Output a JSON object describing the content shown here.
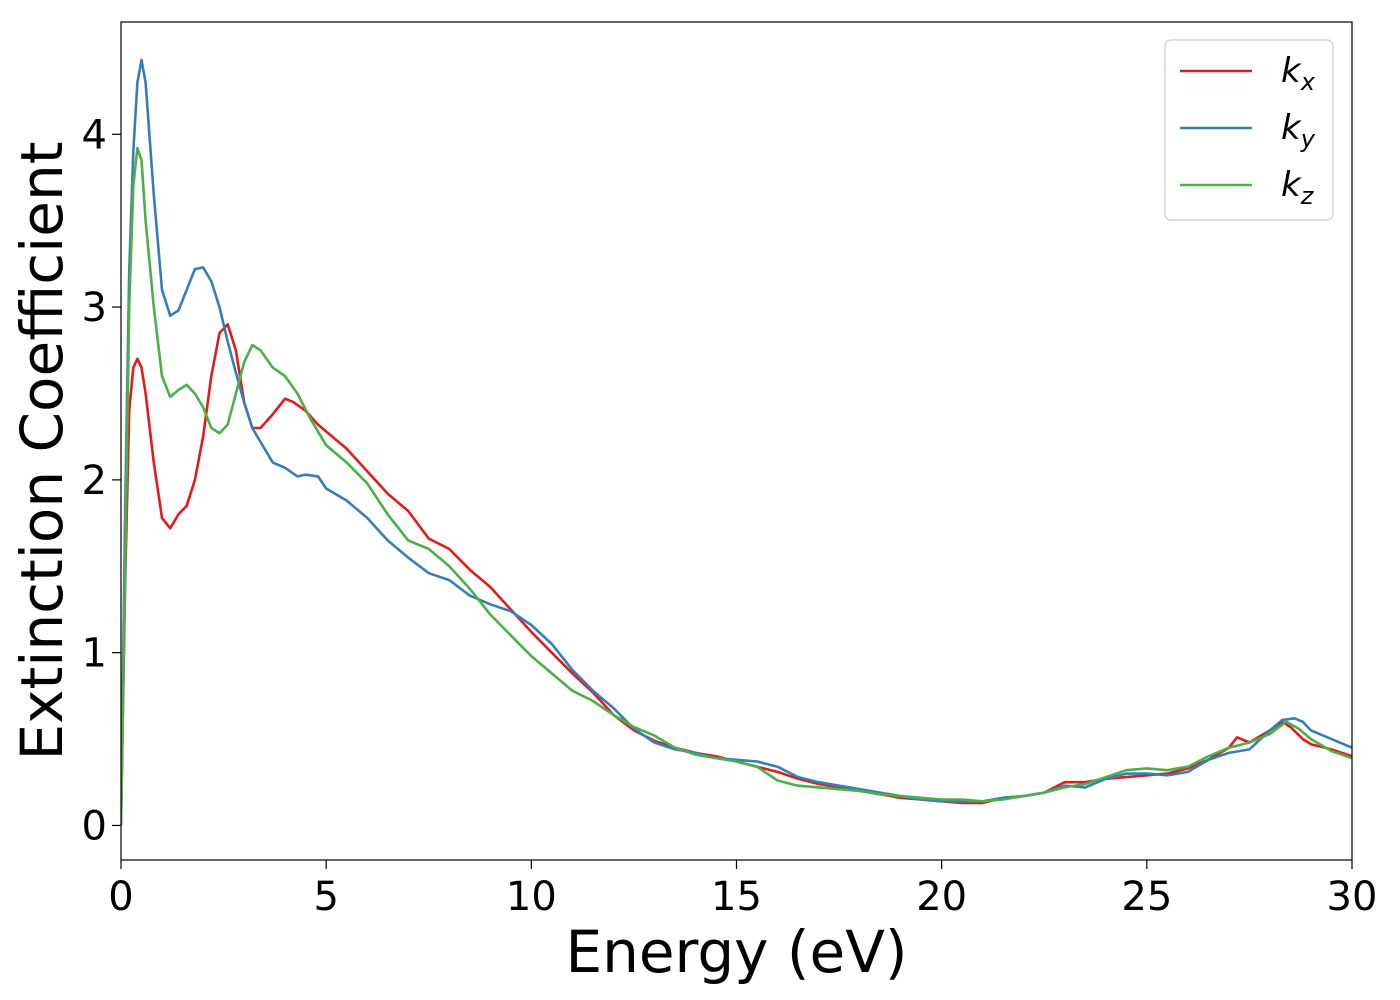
{
  "chart_data": {
    "type": "line",
    "xlabel": "Energy (eV)",
    "ylabel": "Extinction Coefficient",
    "xlim": [
      0,
      30
    ],
    "ylim": [
      -0.2,
      4.65
    ],
    "xticks": [
      0,
      5,
      10,
      15,
      20,
      25,
      30
    ],
    "xtick_labels": [
      "0",
      "5",
      "10",
      "15",
      "20",
      "25",
      "30"
    ],
    "yticks": [
      0,
      1,
      2,
      3,
      4
    ],
    "ytick_labels": [
      "0",
      "1",
      "2",
      "3",
      "4"
    ],
    "grid": false,
    "legend_position": "top-right",
    "series": [
      {
        "name": "k",
        "subscript": "x",
        "color": "#e41a1c",
        "x": [
          0,
          0.1,
          0.2,
          0.3,
          0.4,
          0.5,
          0.6,
          0.8,
          1.0,
          1.2,
          1.4,
          1.6,
          1.8,
          2.0,
          2.2,
          2.4,
          2.6,
          2.8,
          3.0,
          3.2,
          3.4,
          3.7,
          4.0,
          4.2,
          4.5,
          4.8,
          5.0,
          5.5,
          6.0,
          6.5,
          7.0,
          7.5,
          8.0,
          8.5,
          9.0,
          9.5,
          10.0,
          10.5,
          11.0,
          11.5,
          12.0,
          12.5,
          13.0,
          13.5,
          14.0,
          14.5,
          15.0,
          15.5,
          16.0,
          16.5,
          17.0,
          17.5,
          18.0,
          18.5,
          19.0,
          19.5,
          20.0,
          20.5,
          21.0,
          21.5,
          22.0,
          22.5,
          23.0,
          23.5,
          24.0,
          24.5,
          25.0,
          25.5,
          26.0,
          26.5,
          27.0,
          27.2,
          27.5,
          28.0,
          28.3,
          28.5,
          28.8,
          29.0,
          29.5,
          30.0
        ],
        "y": [
          0,
          1.4,
          2.4,
          2.65,
          2.7,
          2.65,
          2.5,
          2.1,
          1.78,
          1.72,
          1.8,
          1.85,
          2.0,
          2.25,
          2.6,
          2.85,
          2.9,
          2.75,
          2.45,
          2.3,
          2.3,
          2.38,
          2.47,
          2.45,
          2.4,
          2.32,
          2.28,
          2.18,
          2.05,
          1.92,
          1.82,
          1.66,
          1.6,
          1.48,
          1.38,
          1.25,
          1.12,
          1.0,
          0.88,
          0.77,
          0.64,
          0.55,
          0.49,
          0.45,
          0.42,
          0.4,
          0.37,
          0.34,
          0.31,
          0.27,
          0.24,
          0.22,
          0.2,
          0.18,
          0.16,
          0.15,
          0.14,
          0.13,
          0.13,
          0.16,
          0.17,
          0.19,
          0.25,
          0.25,
          0.27,
          0.28,
          0.29,
          0.3,
          0.33,
          0.38,
          0.45,
          0.51,
          0.48,
          0.55,
          0.6,
          0.57,
          0.5,
          0.47,
          0.44,
          0.4
        ]
      },
      {
        "name": "k",
        "subscript": "y",
        "color": "#377eb8",
        "x": [
          0,
          0.1,
          0.2,
          0.3,
          0.4,
          0.5,
          0.6,
          0.8,
          1.0,
          1.2,
          1.4,
          1.6,
          1.8,
          2.0,
          2.2,
          2.4,
          2.6,
          2.8,
          3.0,
          3.2,
          3.4,
          3.7,
          4.0,
          4.3,
          4.5,
          4.8,
          5.0,
          5.5,
          6.0,
          6.5,
          7.0,
          7.5,
          8.0,
          8.5,
          9.0,
          9.5,
          10.0,
          10.5,
          11.0,
          11.5,
          12.0,
          12.5,
          13.0,
          13.5,
          14.0,
          14.5,
          15.0,
          15.5,
          16.0,
          16.5,
          17.0,
          17.5,
          18.0,
          18.5,
          19.0,
          19.5,
          20.0,
          20.5,
          21.0,
          21.5,
          22.0,
          22.5,
          23.0,
          23.5,
          24.0,
          24.5,
          25.0,
          25.5,
          26.0,
          26.5,
          27.0,
          27.5,
          28.0,
          28.3,
          28.6,
          28.8,
          29.0,
          29.5,
          30.0
        ],
        "y": [
          0,
          1.8,
          3.2,
          3.9,
          4.3,
          4.43,
          4.3,
          3.65,
          3.1,
          2.95,
          2.98,
          3.1,
          3.22,
          3.23,
          3.15,
          3.0,
          2.8,
          2.62,
          2.45,
          2.3,
          2.22,
          2.1,
          2.07,
          2.02,
          2.03,
          2.02,
          1.95,
          1.88,
          1.78,
          1.65,
          1.55,
          1.46,
          1.42,
          1.33,
          1.28,
          1.24,
          1.16,
          1.05,
          0.9,
          0.78,
          0.68,
          0.56,
          0.48,
          0.44,
          0.42,
          0.39,
          0.38,
          0.37,
          0.34,
          0.28,
          0.25,
          0.23,
          0.21,
          0.19,
          0.17,
          0.15,
          0.14,
          0.14,
          0.14,
          0.16,
          0.17,
          0.19,
          0.23,
          0.22,
          0.27,
          0.3,
          0.3,
          0.29,
          0.31,
          0.38,
          0.42,
          0.44,
          0.55,
          0.61,
          0.62,
          0.6,
          0.55,
          0.5,
          0.45
        ]
      },
      {
        "name": "k",
        "subscript": "z",
        "color": "#4daf4a",
        "x": [
          0,
          0.1,
          0.2,
          0.3,
          0.4,
          0.5,
          0.6,
          0.8,
          1.0,
          1.2,
          1.4,
          1.6,
          1.8,
          2.0,
          2.2,
          2.4,
          2.6,
          2.8,
          3.0,
          3.2,
          3.4,
          3.7,
          4.0,
          4.3,
          4.6,
          5.0,
          5.5,
          6.0,
          6.5,
          7.0,
          7.5,
          8.0,
          8.5,
          9.0,
          9.5,
          10.0,
          10.5,
          11.0,
          11.5,
          12.0,
          12.5,
          13.0,
          13.5,
          14.0,
          14.5,
          15.0,
          15.5,
          16.0,
          16.5,
          17.0,
          17.5,
          18.0,
          18.5,
          19.0,
          19.5,
          20.0,
          20.5,
          21.0,
          21.5,
          22.0,
          22.5,
          23.0,
          23.5,
          24.0,
          24.5,
          25.0,
          25.5,
          26.0,
          26.5,
          27.0,
          27.5,
          28.0,
          28.4,
          28.7,
          29.0,
          29.5,
          30.0
        ],
        "y": [
          0,
          1.5,
          3.0,
          3.7,
          3.92,
          3.85,
          3.5,
          3.0,
          2.6,
          2.48,
          2.52,
          2.55,
          2.5,
          2.42,
          2.3,
          2.27,
          2.32,
          2.5,
          2.68,
          2.78,
          2.75,
          2.65,
          2.6,
          2.5,
          2.36,
          2.2,
          2.1,
          1.98,
          1.8,
          1.65,
          1.6,
          1.5,
          1.37,
          1.22,
          1.1,
          0.98,
          0.88,
          0.78,
          0.72,
          0.64,
          0.57,
          0.52,
          0.45,
          0.41,
          0.39,
          0.37,
          0.34,
          0.26,
          0.23,
          0.22,
          0.21,
          0.2,
          0.18,
          0.17,
          0.16,
          0.15,
          0.15,
          0.14,
          0.15,
          0.17,
          0.19,
          0.22,
          0.24,
          0.28,
          0.32,
          0.33,
          0.32,
          0.34,
          0.4,
          0.45,
          0.48,
          0.53,
          0.6,
          0.56,
          0.5,
          0.43,
          0.39
        ]
      }
    ]
  }
}
